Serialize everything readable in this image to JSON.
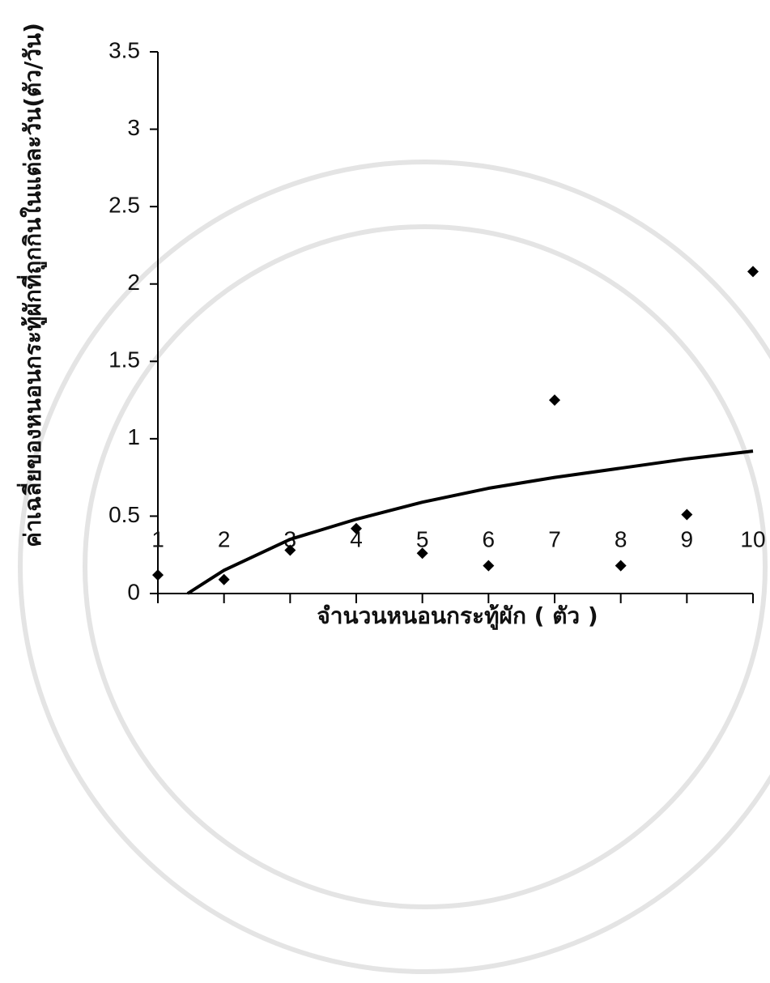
{
  "chart_data": {
    "type": "scatter",
    "x_label": "จำนวนหนอนกระทู้ผัก ( ตัว )",
    "y_label": "ค่าเฉลี่ยของหนอนกระทู้ผักที่ถูกกินในแต่ละวัน(ตัว/วัน)",
    "x": [
      1,
      2,
      3,
      4,
      5,
      6,
      7,
      8,
      9,
      10
    ],
    "values": [
      0.12,
      0.09,
      0.28,
      0.42,
      0.26,
      0.18,
      1.25,
      0.18,
      0.51,
      2.08
    ],
    "color": "#000000",
    "trendline": {
      "x": [
        1.45,
        2,
        3,
        4,
        5,
        6,
        7,
        8,
        9,
        10
      ],
      "values": [
        0,
        0.15,
        0.35,
        0.48,
        0.59,
        0.68,
        0.75,
        0.81,
        0.87,
        0.92
      ],
      "color": "#000000"
    },
    "xlim": [
      1,
      10
    ],
    "xticks": [
      1,
      2,
      3,
      4,
      5,
      6,
      7,
      8,
      9,
      10
    ],
    "ylim": [
      0,
      3.5
    ],
    "yticks": [
      0,
      0.5,
      1,
      1.5,
      2,
      2.5,
      3,
      3.5
    ]
  }
}
